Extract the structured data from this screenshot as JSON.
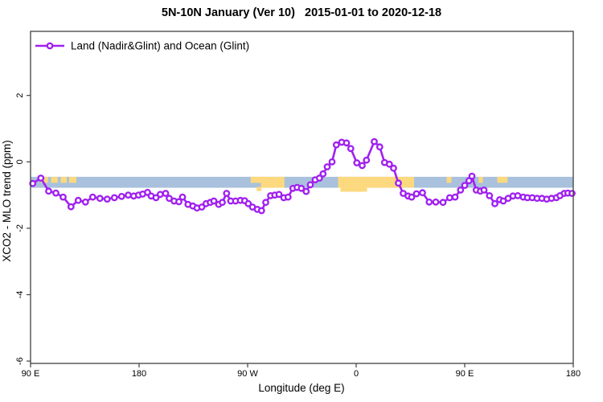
{
  "title": "5N-10N January (Ver 10)   2015-01-01 to 2020-12-18",
  "legend": {
    "label": "Land (Nadir&Glint) and Ocean (Glint)"
  },
  "colors": {
    "series": "#A020F0",
    "ocean_strip": "#A9C1DC",
    "land_strip": "#FCD97E",
    "frame": "#404040"
  },
  "chart_data": {
    "type": "line",
    "title": "5N-10N January (Ver 10)   2015-01-01 to 2020-12-18",
    "xlabel": "Longitude (deg E)",
    "ylabel": "XCO2 - MLO trend (ppm)",
    "xlim": [
      90,
      540
    ],
    "ylim": [
      -6.07,
      3.93
    ],
    "grid": false,
    "legend_position": "top-left-inside",
    "x_ticks": [
      {
        "v": 90,
        "label": "90 E"
      },
      {
        "v": 180,
        "label": "180"
      },
      {
        "v": 270,
        "label": "90 W"
      },
      {
        "v": 360,
        "label": "0"
      },
      {
        "v": 450,
        "label": "90 E"
      },
      {
        "v": 540,
        "label": "180"
      }
    ],
    "y_ticks": [
      {
        "v": 2,
        "label": "2"
      },
      {
        "v": 0,
        "label": "0"
      },
      {
        "v": -2,
        "label": "-2"
      },
      {
        "v": -4,
        "label": "-4"
      },
      {
        "v": -6,
        "label": "-6"
      }
    ],
    "map_band": {
      "comment_visible": "horizontal strip showing ocean (blue) and land (yellow) along 5N-10N",
      "top": -0.45,
      "bottom": -0.78,
      "land_segments": [
        {
          "from": 98.5,
          "to": 104.5,
          "full": false
        },
        {
          "from": 107,
          "to": 112.5,
          "full": false
        },
        {
          "from": 115,
          "to": 120,
          "full": false
        },
        {
          "from": 122,
          "to": 128,
          "full": false
        },
        {
          "from": 272.5,
          "to": 281,
          "full": false
        },
        {
          "from": 281,
          "to": 300.5,
          "full": true
        },
        {
          "from": 345,
          "to": 408,
          "full": true
        },
        {
          "from": 435,
          "to": 439,
          "full": false
        },
        {
          "from": 461.5,
          "to": 465,
          "full": false
        },
        {
          "from": 477,
          "to": 485.5,
          "full": false
        }
      ],
      "land_bumps": [
        {
          "from": 277.5,
          "to": 281.5,
          "bottom": -0.88
        },
        {
          "from": 347,
          "to": 369,
          "bottom": -0.9
        }
      ]
    },
    "series": [
      {
        "name": "Land (Nadir&Glint) and Ocean (Glint)",
        "marker": "open-circle",
        "x": [
          91.8,
          98.5,
          105,
          111,
          117,
          123.5,
          129.5,
          135.5,
          141.5,
          147.5,
          153.5,
          159.5,
          165.5,
          171,
          175.5,
          179.5,
          183,
          187,
          190,
          194,
          197.5,
          202,
          205,
          209,
          213,
          216,
          220.5,
          224.5,
          228,
          232,
          235.5,
          239,
          242,
          246,
          249,
          252.5,
          256,
          260,
          264,
          267.5,
          270.5,
          274,
          278,
          281.5,
          285,
          289,
          292.5,
          296,
          300,
          303.5,
          307.5,
          311,
          314.5,
          318.5,
          322,
          326,
          329.5,
          332.5,
          336,
          340,
          343.5,
          348,
          352,
          355.5,
          360.5,
          365,
          368.5,
          375,
          379.5,
          383.5,
          387.5,
          391,
          395,
          399,
          403,
          406,
          410,
          415,
          420.5,
          426,
          432,
          437.5,
          442,
          446.5,
          450,
          453.5,
          456,
          459.5,
          463,
          466,
          470.5,
          475,
          479,
          482,
          486,
          490,
          494,
          498.5,
          502,
          506,
          510,
          514,
          518,
          522,
          526,
          529,
          532.5,
          535.5,
          539
        ],
        "y": [
          -0.65,
          -0.49,
          -0.88,
          -0.94,
          -1.06,
          -1.35,
          -1.16,
          -1.21,
          -1.06,
          -1.1,
          -1.12,
          -1.08,
          -1.04,
          -1.0,
          -1.03,
          -1.0,
          -0.97,
          -0.92,
          -1.03,
          -1.08,
          -0.98,
          -0.95,
          -1.1,
          -1.18,
          -1.2,
          -1.06,
          -1.28,
          -1.33,
          -1.39,
          -1.36,
          -1.26,
          -1.22,
          -1.18,
          -1.28,
          -1.22,
          -0.95,
          -1.18,
          -1.18,
          -1.16,
          -1.17,
          -1.26,
          -1.36,
          -1.43,
          -1.47,
          -1.22,
          -1.02,
          -1.0,
          -0.98,
          -1.08,
          -1.06,
          -0.8,
          -0.77,
          -0.8,
          -0.89,
          -0.69,
          -0.54,
          -0.49,
          -0.36,
          -0.15,
          0.0,
          0.51,
          0.59,
          0.57,
          0.4,
          -0.03,
          -0.11,
          0.05,
          0.61,
          0.45,
          -0.02,
          -0.07,
          -0.19,
          -0.64,
          -0.95,
          -1.03,
          -1.06,
          -0.96,
          -0.93,
          -1.21,
          -1.21,
          -1.22,
          -1.08,
          -1.06,
          -0.85,
          -0.71,
          -0.57,
          -0.43,
          -0.85,
          -0.88,
          -0.85,
          -1.02,
          -1.26,
          -1.14,
          -1.18,
          -1.1,
          -1.03,
          -1.02,
          -1.06,
          -1.08,
          -1.08,
          -1.1,
          -1.1,
          -1.12,
          -1.1,
          -1.08,
          -1.02,
          -0.95,
          -0.94,
          -0.95
        ]
      }
    ]
  }
}
